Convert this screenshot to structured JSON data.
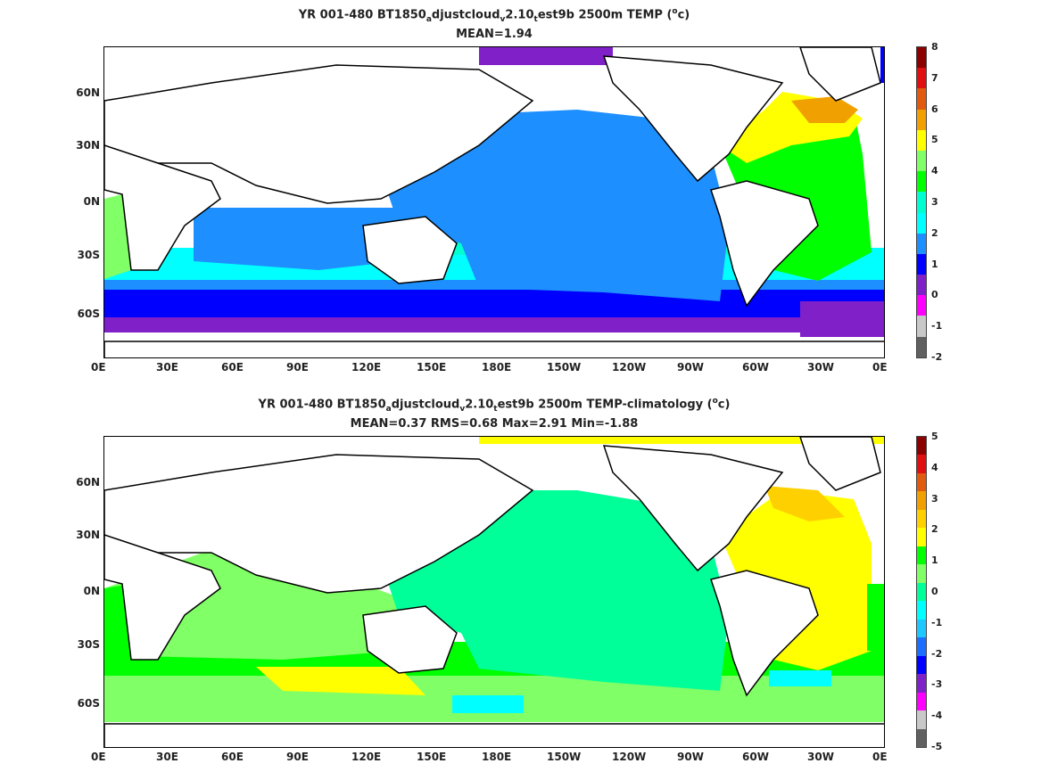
{
  "chart_data": [
    {
      "type": "heatmap",
      "title_parts": {
        "a": "YR 001-480 BT1850",
        "b": "a",
        "c": "djustcloud",
        "d": "v",
        "e": "2.10",
        "f": "t",
        "g": "est9b 2500m TEMP (",
        "h": "o",
        "i": "c)"
      },
      "subtitle": "MEAN=1.94",
      "xticks": [
        "0E",
        "30E",
        "60E",
        "90E",
        "120E",
        "150E",
        "180E",
        "150W",
        "120W",
        "90W",
        "60W",
        "30W",
        "0E"
      ],
      "yticks": [
        "60N",
        "30N",
        "0N",
        "30S",
        "60S"
      ],
      "colorbar_ticks": [
        "8",
        "7",
        "6",
        "5",
        "4",
        "3",
        "2",
        "1",
        "0",
        "-1",
        "-2"
      ],
      "colorbar_colors": [
        "#8b0000",
        "#e01010",
        "#e05a10",
        "#f0a000",
        "#ffff00",
        "#80ff66",
        "#00ff00",
        "#00ffd0",
        "#00ffff",
        "#1e8fff",
        "#0000ff",
        "#8020c8",
        "#ff00ff",
        "#c8c8c8",
        "#606060"
      ],
      "mean": 1.94
    },
    {
      "type": "heatmap",
      "title_parts": {
        "a": "YR 001-480 BT1850",
        "b": "a",
        "c": "djustcloud",
        "d": "v",
        "e": "2.10",
        "f": "t",
        "g": "est9b 2500m TEMP-climatology (",
        "h": "o",
        "i": "c)"
      },
      "subtitle": "MEAN=0.37   RMS=0.68   Max=2.91   Min=-1.88",
      "xticks": [
        "0E",
        "30E",
        "60E",
        "90E",
        "120E",
        "150E",
        "180E",
        "150W",
        "120W",
        "90W",
        "60W",
        "30W",
        "0E"
      ],
      "yticks": [
        "60N",
        "30N",
        "0N",
        "30S",
        "60S"
      ],
      "colorbar_ticks": [
        "5",
        "4",
        "3",
        "2",
        "1",
        "0",
        "-1",
        "-2",
        "-3",
        "-4",
        "-5"
      ],
      "colorbar_colors": [
        "#8b0000",
        "#e01010",
        "#e05a10",
        "#f0a000",
        "#ffd000",
        "#ffff00",
        "#00ff00",
        "#80ff66",
        "#00ff99",
        "#00ffff",
        "#1ec8ff",
        "#1e6fff",
        "#0000ff",
        "#8020c8",
        "#ff00ff",
        "#c8c8c8",
        "#606060"
      ],
      "mean": 0.37,
      "rms": 0.68,
      "max": 2.91,
      "min": -1.88
    }
  ]
}
